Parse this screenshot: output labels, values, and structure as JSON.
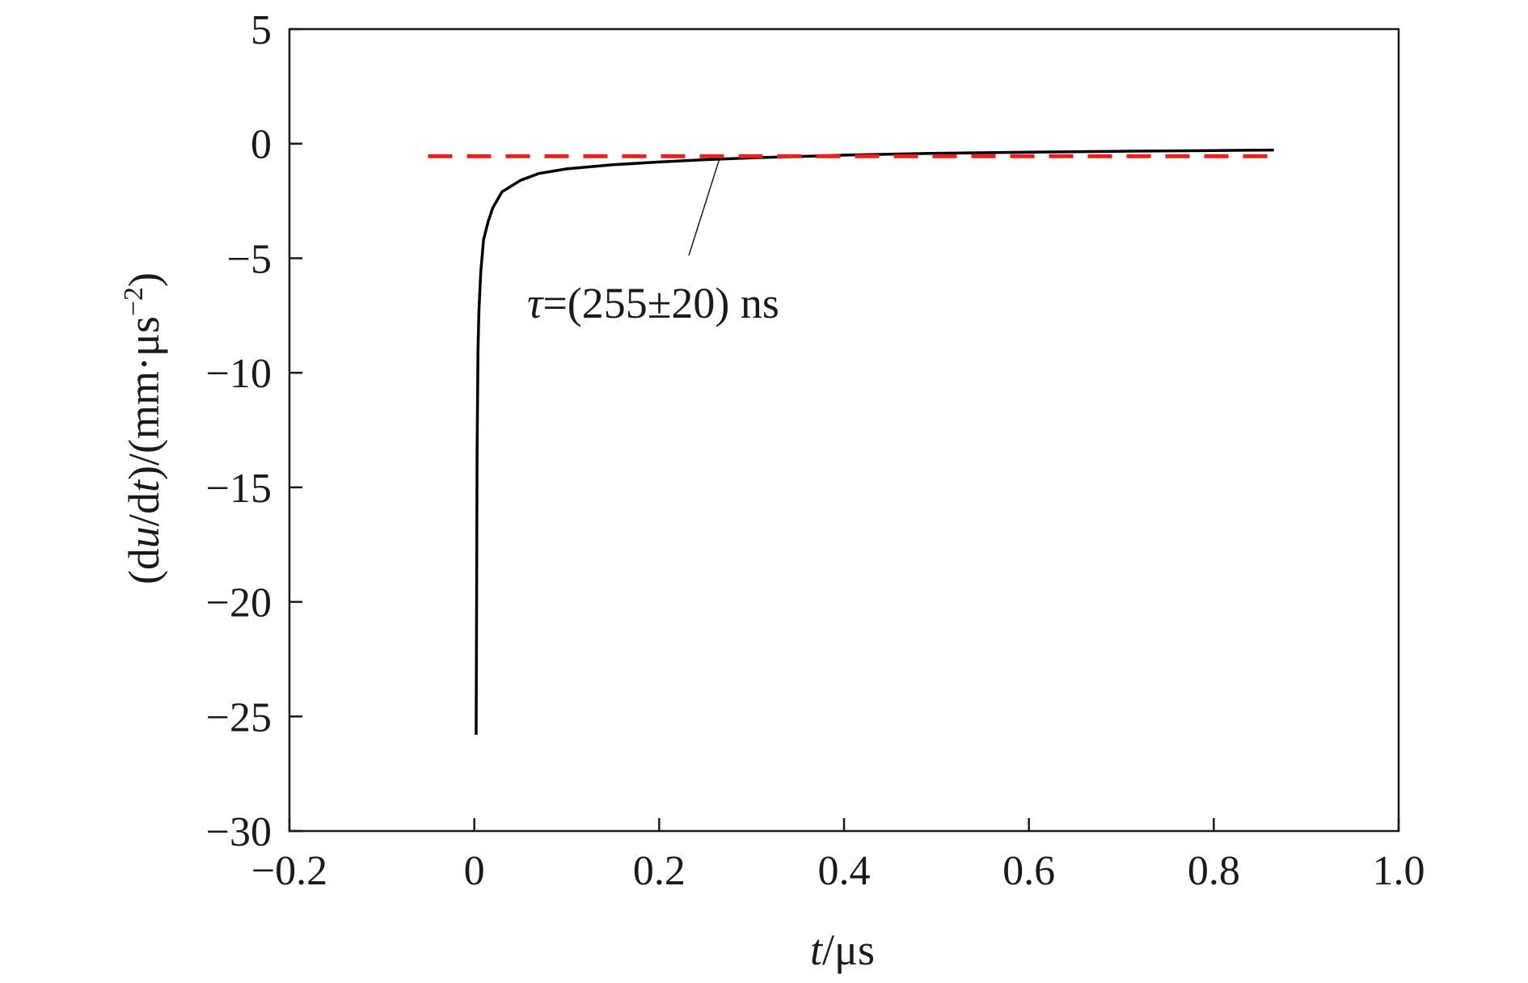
{
  "chart_data": {
    "type": "line",
    "xlabel": {
      "var": "t",
      "unit": "/μs"
    },
    "ylabel": {
      "prefix": "(d",
      "var1": "u",
      "mid": "/d",
      "var2": "t",
      "suffix": ")/(mm·μs",
      "sup": "−2",
      "close": ")"
    },
    "xlim": [
      -0.2,
      1.0
    ],
    "ylim": [
      -30,
      5
    ],
    "xticks": [
      -0.2,
      0,
      0.2,
      0.4,
      0.6,
      0.8,
      1.0
    ],
    "xtick_labels": [
      "−0.2",
      "0",
      "0.2",
      "0.4",
      "0.6",
      "0.8",
      "1.0"
    ],
    "yticks": [
      5,
      0,
      -5,
      -10,
      -15,
      -20,
      -25,
      -30
    ],
    "ytick_labels": [
      "5",
      "0",
      "−5",
      "−10",
      "−15",
      "−20",
      "−25",
      "−30"
    ],
    "grid": false,
    "series": [
      {
        "style": "solid",
        "color": "#000000",
        "x": [
          0.002,
          0.0025,
          0.003,
          0.004,
          0.005,
          0.007,
          0.01,
          0.015,
          0.02,
          0.03,
          0.05,
          0.07,
          0.1,
          0.15,
          0.2,
          0.25,
          0.3,
          0.4,
          0.5,
          0.6,
          0.7,
          0.8,
          0.865
        ],
        "y": [
          -25.8,
          -20.0,
          -13.5,
          -9.0,
          -7.3,
          -5.6,
          -4.2,
          -3.4,
          -2.8,
          -2.1,
          -1.6,
          -1.3,
          -1.1,
          -0.92,
          -0.8,
          -0.7,
          -0.62,
          -0.5,
          -0.42,
          -0.37,
          -0.33,
          -0.3,
          -0.28
        ]
      },
      {
        "style": "dashed",
        "color": "#e02424",
        "x": [
          -0.05,
          0.865
        ],
        "y": [
          -0.55,
          -0.55
        ]
      }
    ],
    "annotation": {
      "text_var": "τ",
      "text_rest": "=(255±20) ns",
      "point": [
        0.265,
        -0.55
      ]
    }
  }
}
